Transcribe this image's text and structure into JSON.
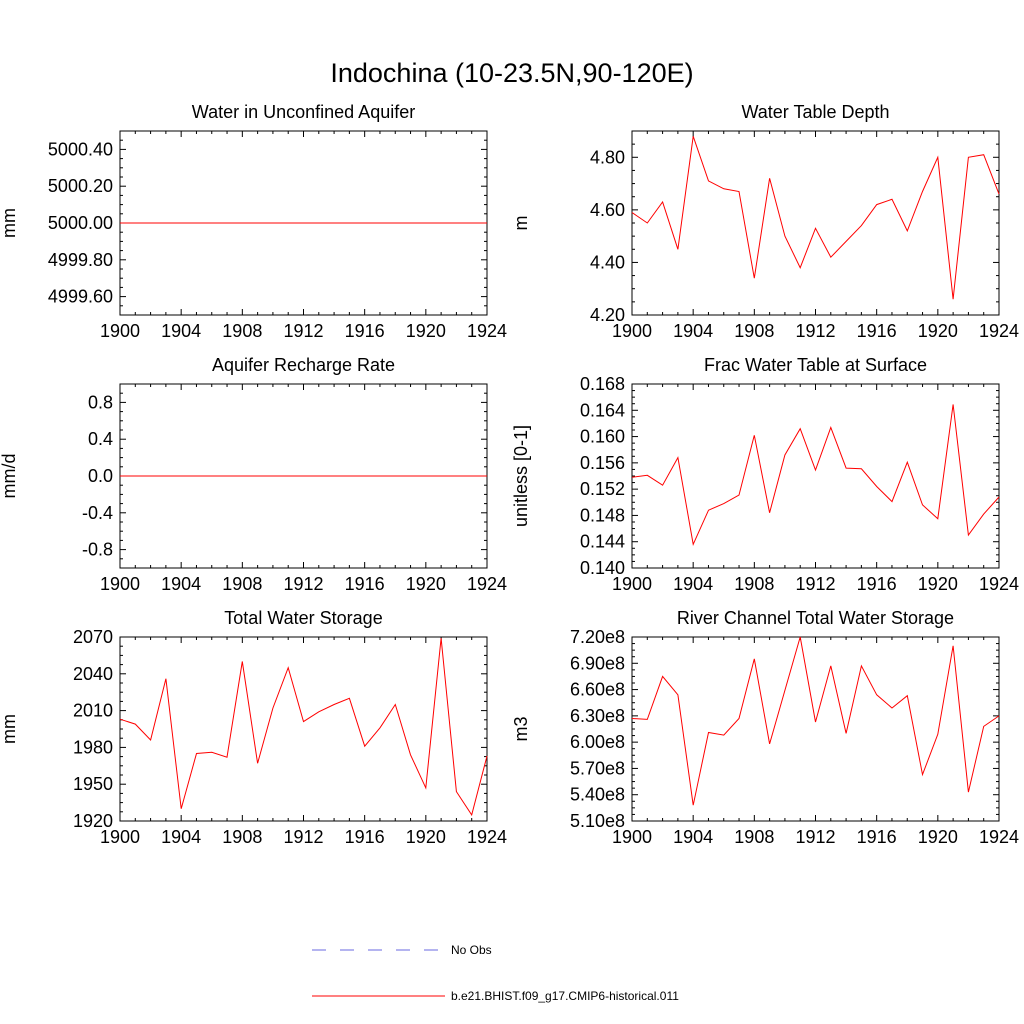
{
  "figure": {
    "title": "Indochina (10-23.5N,90-120E)"
  },
  "legend": {
    "items": [
      {
        "label": "No Obs",
        "color": "#6a6ae0",
        "style": "dashed"
      },
      {
        "label": "b.e21.BHIST.f09_g17.CMIP6-historical.011",
        "color": "#ff0000",
        "style": "solid"
      }
    ]
  },
  "chart_data": [
    {
      "type": "line",
      "title": "Water in Unconfined Aquifer",
      "ylabel": "mm",
      "xlim": [
        1900,
        1924
      ],
      "ylim": [
        4999.5,
        5000.5
      ],
      "xticks": [
        1900,
        1904,
        1908,
        1912,
        1916,
        1920,
        1924
      ],
      "yticks": [
        4999.6,
        4999.8,
        5000.0,
        5000.2,
        5000.4
      ],
      "ytick_labels": [
        "4999.60",
        "4999.80",
        "5000.00",
        "5000.20",
        "5000.40"
      ],
      "x": [
        1900,
        1901,
        1902,
        1903,
        1904,
        1905,
        1906,
        1907,
        1908,
        1909,
        1910,
        1911,
        1912,
        1913,
        1914,
        1915,
        1916,
        1917,
        1918,
        1919,
        1920,
        1921,
        1922,
        1923,
        1924
      ],
      "series": [
        {
          "color": "#ff0000",
          "values": [
            5000,
            5000,
            5000,
            5000,
            5000,
            5000,
            5000,
            5000,
            5000,
            5000,
            5000,
            5000,
            5000,
            5000,
            5000,
            5000,
            5000,
            5000,
            5000,
            5000,
            5000,
            5000,
            5000,
            5000,
            5000
          ]
        }
      ]
    },
    {
      "type": "line",
      "title": "Water Table Depth",
      "ylabel": "m",
      "xlim": [
        1900,
        1924
      ],
      "ylim": [
        4.2,
        4.9
      ],
      "xticks": [
        1900,
        1904,
        1908,
        1912,
        1916,
        1920,
        1924
      ],
      "yticks": [
        4.2,
        4.4,
        4.6,
        4.8
      ],
      "ytick_labels": [
        "4.20",
        "4.40",
        "4.60",
        "4.80"
      ],
      "x": [
        1900,
        1901,
        1902,
        1903,
        1904,
        1905,
        1906,
        1907,
        1908,
        1909,
        1910,
        1911,
        1912,
        1913,
        1914,
        1915,
        1916,
        1917,
        1918,
        1919,
        1920,
        1921,
        1922,
        1923,
        1924
      ],
      "series": [
        {
          "color": "#ff0000",
          "values": [
            4.59,
            4.55,
            4.63,
            4.45,
            4.88,
            4.71,
            4.68,
            4.67,
            4.34,
            4.72,
            4.5,
            4.38,
            4.53,
            4.42,
            4.48,
            4.54,
            4.62,
            4.64,
            4.52,
            4.67,
            4.8,
            4.26,
            4.8,
            4.81,
            4.66
          ]
        }
      ]
    },
    {
      "type": "line",
      "title": "Aquifer Recharge Rate",
      "ylabel": "mm/d",
      "xlim": [
        1900,
        1924
      ],
      "ylim": [
        -1.0,
        1.0
      ],
      "xticks": [
        1900,
        1904,
        1908,
        1912,
        1916,
        1920,
        1924
      ],
      "yticks": [
        -0.8,
        -0.4,
        0.0,
        0.4,
        0.8
      ],
      "ytick_labels": [
        "-0.8",
        "-0.4",
        "0.0",
        "0.4",
        "0.8"
      ],
      "x": [
        1900,
        1901,
        1902,
        1903,
        1904,
        1905,
        1906,
        1907,
        1908,
        1909,
        1910,
        1911,
        1912,
        1913,
        1914,
        1915,
        1916,
        1917,
        1918,
        1919,
        1920,
        1921,
        1922,
        1923,
        1924
      ],
      "series": [
        {
          "color": "#ff0000",
          "values": [
            0,
            0,
            0,
            0,
            0,
            0,
            0,
            0,
            0,
            0,
            0,
            0,
            0,
            0,
            0,
            0,
            0,
            0,
            0,
            0,
            0,
            0,
            0,
            0,
            0
          ]
        }
      ]
    },
    {
      "type": "line",
      "title": "Frac Water Table at Surface",
      "ylabel": "unitless [0-1]",
      "xlim": [
        1900,
        1924
      ],
      "ylim": [
        0.14,
        0.168
      ],
      "xticks": [
        1900,
        1904,
        1908,
        1912,
        1916,
        1920,
        1924
      ],
      "yticks": [
        0.14,
        0.144,
        0.148,
        0.152,
        0.156,
        0.16,
        0.164,
        0.168
      ],
      "ytick_labels": [
        "0.140",
        "0.144",
        "0.148",
        "0.152",
        "0.156",
        "0.160",
        "0.164",
        "0.168"
      ],
      "x": [
        1900,
        1901,
        1902,
        1903,
        1904,
        1905,
        1906,
        1907,
        1908,
        1909,
        1910,
        1911,
        1912,
        1913,
        1914,
        1915,
        1916,
        1917,
        1918,
        1919,
        1920,
        1921,
        1922,
        1923,
        1924
      ],
      "series": [
        {
          "color": "#ff0000",
          "values": [
            0.1538,
            0.1541,
            0.1526,
            0.1568,
            0.1436,
            0.1488,
            0.1498,
            0.1511,
            0.1602,
            0.1484,
            0.1572,
            0.1612,
            0.1549,
            0.1614,
            0.1552,
            0.1551,
            0.1524,
            0.1501,
            0.1561,
            0.1496,
            0.1475,
            0.1649,
            0.145,
            0.1482,
            0.1508
          ]
        }
      ]
    },
    {
      "type": "line",
      "title": "Total Water Storage",
      "ylabel": "mm",
      "xlim": [
        1900,
        1924
      ],
      "ylim": [
        1920,
        2070
      ],
      "xticks": [
        1900,
        1904,
        1908,
        1912,
        1916,
        1920,
        1924
      ],
      "yticks": [
        1920,
        1950,
        1980,
        2010,
        2040,
        2070
      ],
      "ytick_labels": [
        "1920",
        "1950",
        "1980",
        "2010",
        "2040",
        "2070"
      ],
      "x": [
        1900,
        1901,
        1902,
        1903,
        1904,
        1905,
        1906,
        1907,
        1908,
        1909,
        1910,
        1911,
        1912,
        1913,
        1914,
        1915,
        1916,
        1917,
        1918,
        1919,
        1920,
        1921,
        1922,
        1923,
        1924
      ],
      "series": [
        {
          "color": "#ff0000",
          "values": [
            2003,
            1999,
            1986,
            2036,
            1930,
            1975,
            1976,
            1972,
            2050,
            1967,
            2012,
            2045,
            2001,
            2009,
            2015,
            2020,
            1981,
            1996,
            2015,
            1974,
            1947,
            2069,
            1944,
            1925,
            1973
          ]
        }
      ]
    },
    {
      "type": "line",
      "title": "River Channel Total Water Storage",
      "ylabel": "m3",
      "xlim": [
        1900,
        1924
      ],
      "ylim": [
        510000000,
        720000000
      ],
      "xticks": [
        1900,
        1904,
        1908,
        1912,
        1916,
        1920,
        1924
      ],
      "yticks": [
        510000000,
        540000000,
        570000000,
        600000000,
        630000000,
        660000000,
        690000000,
        720000000
      ],
      "ytick_labels": [
        "5.10e8",
        "5.40e8",
        "5.70e8",
        "6.00e8",
        "6.30e8",
        "6.60e8",
        "6.90e8",
        "7.20e8"
      ],
      "x": [
        1900,
        1901,
        1902,
        1903,
        1904,
        1905,
        1906,
        1907,
        1908,
        1909,
        1910,
        1911,
        1912,
        1913,
        1914,
        1915,
        1916,
        1917,
        1918,
        1919,
        1920,
        1921,
        1922,
        1923,
        1924
      ],
      "series": [
        {
          "color": "#ff0000",
          "values": [
            627000000,
            626000000,
            675000000,
            654000000,
            528000000,
            611000000,
            608000000,
            627000000,
            695000000,
            598000000,
            659000000,
            720000000,
            623000000,
            687000000,
            610000000,
            687000000,
            654000000,
            639000000,
            653000000,
            563000000,
            609000000,
            710000000,
            543000000,
            618000000,
            630000000
          ]
        }
      ]
    }
  ]
}
